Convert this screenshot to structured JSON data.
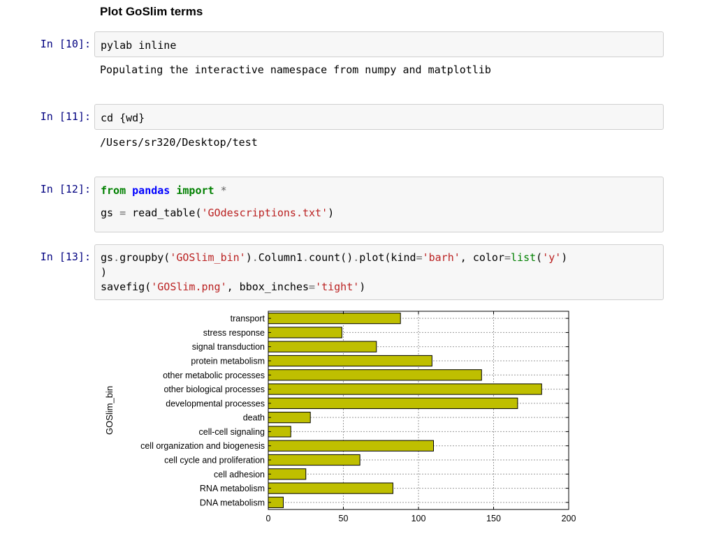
{
  "heading": "Plot GoSlim terms",
  "cells": [
    {
      "prompt": "In [10]:",
      "code_line1": "pylab inline",
      "output": "Populating the interactive namespace from numpy and matplotlib"
    },
    {
      "prompt": "In [11]:",
      "code_line1": "cd {wd}",
      "output": "/Users/sr320/Desktop/test"
    },
    {
      "prompt": "In [12]:",
      "tok_from": "from",
      "tok_pandas": "pandas",
      "tok_import": "import",
      "tok_star": "*",
      "line2_prefix": "gs ",
      "line2_eq": "=",
      "line2_func": " read_table(",
      "line2_str": "'GOdescriptions.txt'",
      "line2_close": ")"
    },
    {
      "prompt": "In [13]:",
      "l1_a": "gs",
      "l1_dot1": ".",
      "l1_b": "groupby(",
      "l1_str1": "'GOSlim_bin'",
      "l1_c": ")",
      "l1_dot2": ".",
      "l1_d": "Column1",
      "l1_dot3": ".",
      "l1_e": "count()",
      "l1_dot4": ".",
      "l1_f": "plot(kind",
      "l1_eq1": "=",
      "l1_str2": "'barh'",
      "l1_g": ", color",
      "l1_eq2": "=",
      "l1_list": "list",
      "l1_h": "(",
      "l1_str3": "'y'",
      "l1_i": ")",
      "l2": ")",
      "l3_a": "savefig(",
      "l3_str1": "'GOSlim.png'",
      "l3_b": ", bbox_inches",
      "l3_eq": "=",
      "l3_str2": "'tight'",
      "l3_c": ")"
    }
  ],
  "colors": {
    "bar_fill": "#bfbf00",
    "bar_edge": "#000000",
    "prompt": "#000080"
  },
  "chart_data": {
    "type": "bar",
    "orientation": "horizontal",
    "ylabel": "GOSlim_bin",
    "xlabel": "",
    "xlim": [
      0,
      200
    ],
    "xticks": [
      0,
      50,
      100,
      150,
      200
    ],
    "grid": true,
    "categories": [
      "transport",
      "stress response",
      "signal transduction",
      "protein metabolism",
      "other metabolic processes",
      "other biological processes",
      "developmental processes",
      "death",
      "cell-cell signaling",
      "cell organization and biogenesis",
      "cell cycle and proliferation",
      "cell adhesion",
      "RNA metabolism",
      "DNA metabolism"
    ],
    "values": [
      88,
      49,
      72,
      109,
      142,
      182,
      166,
      28,
      15,
      110,
      61,
      25,
      83,
      10
    ]
  }
}
